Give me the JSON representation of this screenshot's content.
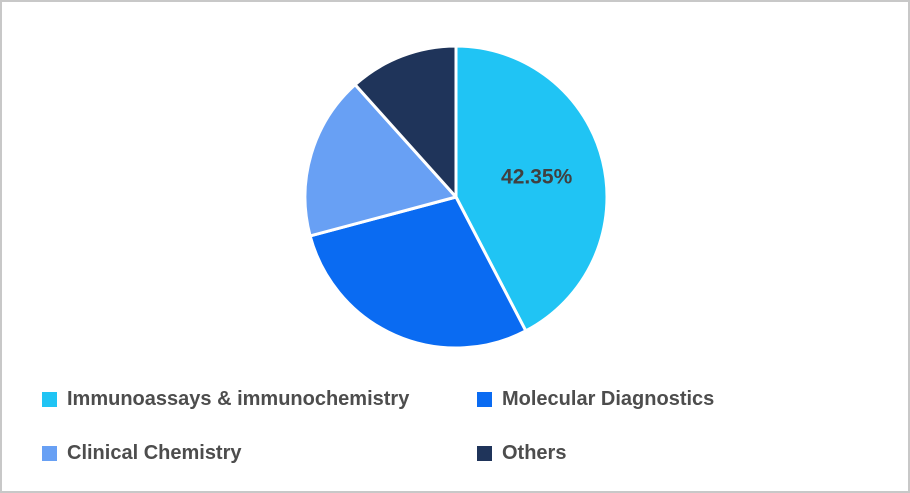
{
  "chart_data": {
    "type": "pie",
    "title": "",
    "start_angle_deg": 0,
    "direction": "clockwise",
    "legend_position": "bottom-two-columns",
    "slice_gap_color": "#ffffff",
    "data_label_color": "#404040",
    "segments": [
      {
        "label": "Immunoassays & immunochemistry",
        "value": 42.35,
        "color": "#20c4f4",
        "data_label": "42.35%"
      },
      {
        "label": "Molecular Diagnostics",
        "value": 28.5,
        "color": "#0a6bf2",
        "data_label": ""
      },
      {
        "label": "Clinical Chemistry",
        "value": 17.5,
        "color": "#68a0f4",
        "data_label": ""
      },
      {
        "label": "Others",
        "value": 11.65,
        "color": "#1f345a",
        "data_label": ""
      }
    ]
  }
}
